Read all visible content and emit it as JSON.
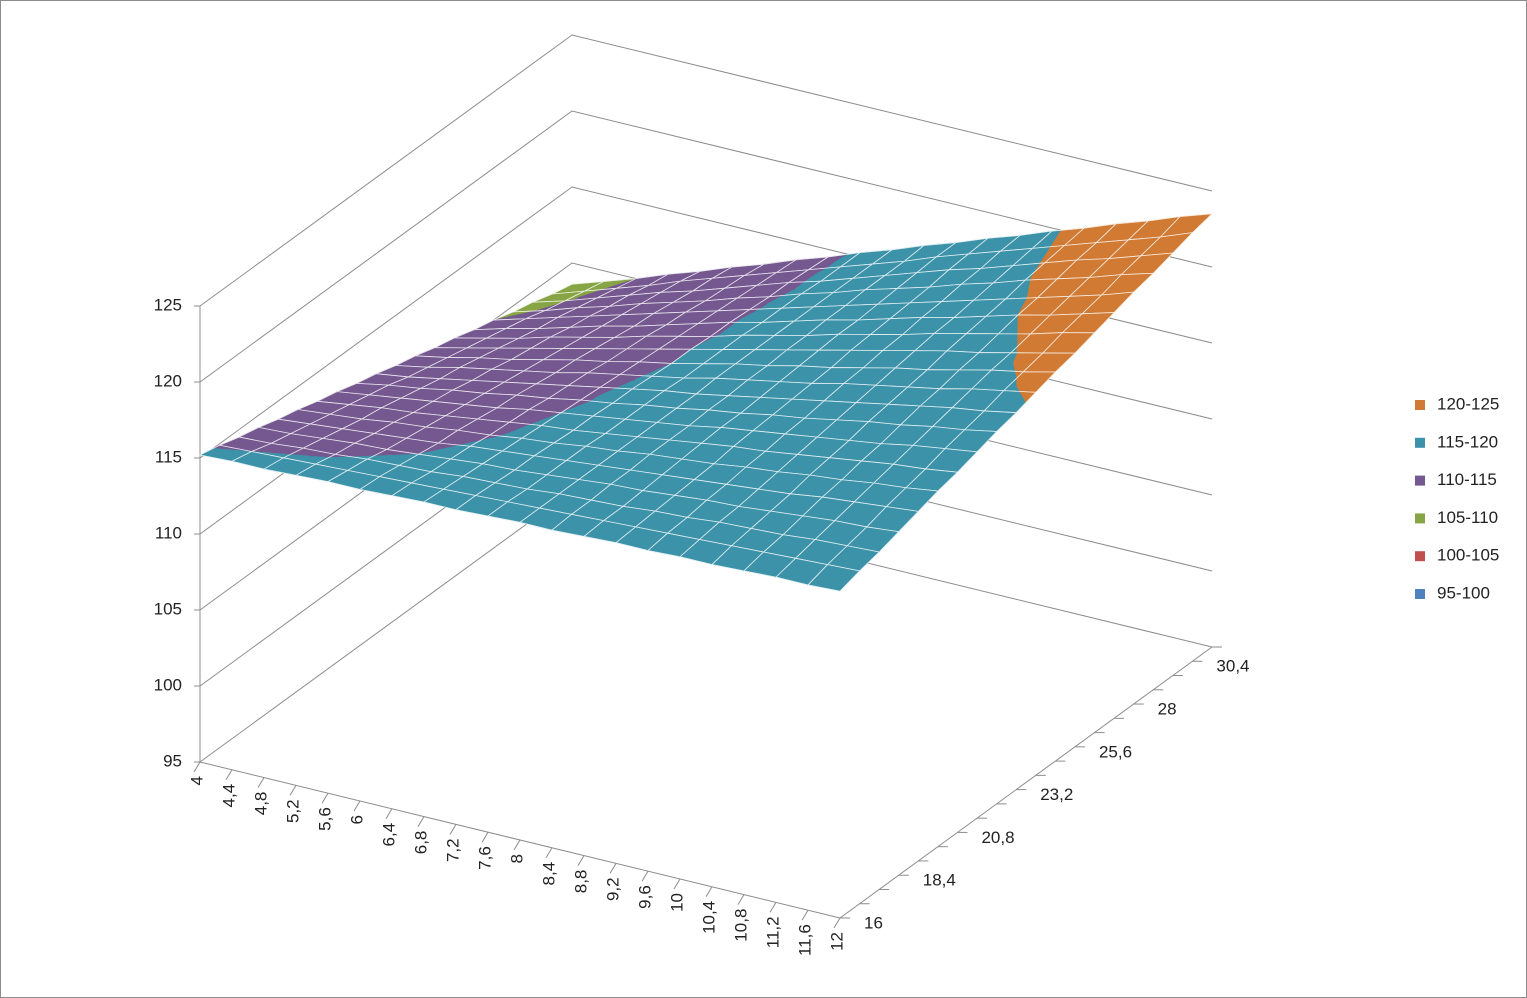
{
  "chart_data": {
    "type": "surface",
    "x_categories": [
      "4",
      "4,4",
      "4,8",
      "5,2",
      "5,6",
      "6",
      "6,4",
      "6,8",
      "7,2",
      "7,6",
      "8",
      "8,4",
      "8,8",
      "9,2",
      "9,6",
      "10",
      "10,4",
      "10,8",
      "11,2",
      "11,6",
      "12"
    ],
    "depth_categories": [
      "16",
      null,
      null,
      "18,4",
      null,
      null,
      "20,8",
      null,
      null,
      "23,2",
      null,
      null,
      "25,6",
      null,
      null,
      "28",
      null,
      null,
      "30,4",
      null
    ],
    "zlim": [
      95,
      125
    ],
    "zticks": [
      95,
      100,
      105,
      110,
      115,
      120,
      125
    ],
    "legend": "right",
    "bands": [
      {
        "name": "95-100",
        "color": "#4f81bd"
      },
      {
        "name": "100-105",
        "color": "#c0504d"
      },
      {
        "name": "105-110",
        "color": "#87a545"
      },
      {
        "name": "110-115",
        "color": "#74588f"
      },
      {
        "name": "115-120",
        "color": "#3c92a8"
      },
      {
        "name": "120-125",
        "color": "#d07a34"
      }
    ],
    "z": [
      [
        115.2,
        115.3,
        115.3,
        115.4,
        115.5,
        115.5,
        115.6,
        115.7,
        115.7,
        115.8,
        115.9,
        115.9,
        116.0,
        116.1,
        116.1,
        116.2,
        116.2,
        116.3,
        116.4,
        116.4,
        116.5
      ],
      [
        114.9,
        115.0,
        115.1,
        115.2,
        115.3,
        115.4,
        115.5,
        115.6,
        115.7,
        115.8,
        115.9,
        116.0,
        116.1,
        116.2,
        116.3,
        116.4,
        116.5,
        116.6,
        116.7,
        116.8,
        116.9
      ],
      [
        114.5,
        114.6,
        114.8,
        114.9,
        115.1,
        115.2,
        115.3,
        115.5,
        115.6,
        115.7,
        115.9,
        116.0,
        116.1,
        116.3,
        116.4,
        116.6,
        116.7,
        116.8,
        117.0,
        117.1,
        117.2
      ],
      [
        114.2,
        114.3,
        114.5,
        114.7,
        114.8,
        115.0,
        115.2,
        115.4,
        115.5,
        115.7,
        115.9,
        116.1,
        116.2,
        116.4,
        116.6,
        116.7,
        116.9,
        117.1,
        117.3,
        117.4,
        117.6
      ],
      [
        113.8,
        114.0,
        114.2,
        114.4,
        114.6,
        114.8,
        115.1,
        115.3,
        115.5,
        115.7,
        115.9,
        116.1,
        116.3,
        116.5,
        116.7,
        116.9,
        117.1,
        117.4,
        117.6,
        117.8,
        118.0
      ],
      [
        113.5,
        113.7,
        113.9,
        114.2,
        114.4,
        114.7,
        114.9,
        115.2,
        115.4,
        115.7,
        115.9,
        116.2,
        116.4,
        116.6,
        116.9,
        117.1,
        117.4,
        117.6,
        117.9,
        118.1,
        118.4
      ],
      [
        113.1,
        113.4,
        113.7,
        113.9,
        114.2,
        114.5,
        114.8,
        115.1,
        115.3,
        115.6,
        115.9,
        116.2,
        116.5,
        116.8,
        117.0,
        117.3,
        117.6,
        117.9,
        118.2,
        118.4,
        118.7
      ],
      [
        112.8,
        113.1,
        113.4,
        113.7,
        114.0,
        114.3,
        114.7,
        115.0,
        115.3,
        115.6,
        115.9,
        116.2,
        116.6,
        116.9,
        117.2,
        117.5,
        117.8,
        118.1,
        118.5,
        118.8,
        119.1
      ],
      [
        112.4,
        112.8,
        113.1,
        113.5,
        113.8,
        114.2,
        114.5,
        114.9,
        115.2,
        115.6,
        115.9,
        116.3,
        116.6,
        117.0,
        117.3,
        117.7,
        118.1,
        118.4,
        118.8,
        119.1,
        119.5
      ],
      [
        112.1,
        112.4,
        112.8,
        113.2,
        113.6,
        114.0,
        114.4,
        114.8,
        115.2,
        115.6,
        115.9,
        116.3,
        116.7,
        117.1,
        117.5,
        117.9,
        118.3,
        118.7,
        119.1,
        119.4,
        119.8
      ],
      [
        111.7,
        112.1,
        112.6,
        113.0,
        113.4,
        113.8,
        114.3,
        114.7,
        115.1,
        115.5,
        116.0,
        116.4,
        116.8,
        117.2,
        117.7,
        118.1,
        118.5,
        118.9,
        119.4,
        119.8,
        120.2
      ],
      [
        111.4,
        111.8,
        112.3,
        112.7,
        113.2,
        113.7,
        114.1,
        114.6,
        115.0,
        115.5,
        116.0,
        116.4,
        116.9,
        117.3,
        117.8,
        118.3,
        118.7,
        119.2,
        119.7,
        120.1,
        120.6
      ],
      [
        111.0,
        111.5,
        112.0,
        112.5,
        113.0,
        113.5,
        114.0,
        114.5,
        115.0,
        115.5,
        116.0,
        116.5,
        117.0,
        117.5,
        118.0,
        118.5,
        119.0,
        119.4,
        119.9,
        120.4,
        120.9
      ],
      [
        110.7,
        111.2,
        111.7,
        112.3,
        112.8,
        113.3,
        113.9,
        114.4,
        114.9,
        115.5,
        116.0,
        116.5,
        117.1,
        117.6,
        118.1,
        118.7,
        119.2,
        119.7,
        120.2,
        120.8,
        121.3
      ],
      [
        110.3,
        110.9,
        111.4,
        112.0,
        112.6,
        113.1,
        113.7,
        114.3,
        114.9,
        115.4,
        116.0,
        116.6,
        117.1,
        117.7,
        118.3,
        118.8,
        119.4,
        120.0,
        120.5,
        121.1,
        121.7
      ],
      [
        110.0,
        110.6,
        111.2,
        111.8,
        112.4,
        113.0,
        113.6,
        114.2,
        114.8,
        115.4,
        116.0,
        116.6,
        117.2,
        117.8,
        118.4,
        119.0,
        119.6,
        120.2,
        120.8,
        121.4,
        122.1
      ],
      [
        109.6,
        110.2,
        110.9,
        111.5,
        112.2,
        112.8,
        113.4,
        114.1,
        114.7,
        115.4,
        116.0,
        116.7,
        117.3,
        117.9,
        118.6,
        119.2,
        119.9,
        120.5,
        121.1,
        121.8,
        122.4
      ],
      [
        109.3,
        109.9,
        110.6,
        111.3,
        112.0,
        112.6,
        113.3,
        114.0,
        114.7,
        115.3,
        116.0,
        116.7,
        117.4,
        118.1,
        118.7,
        119.4,
        120.1,
        120.8,
        121.4,
        122.1,
        122.8
      ],
      [
        108.9,
        109.6,
        110.3,
        111.0,
        111.8,
        112.5,
        113.2,
        113.9,
        114.6,
        115.3,
        116.0,
        116.7,
        117.5,
        118.2,
        118.9,
        119.6,
        120.3,
        121.0,
        121.7,
        122.4,
        123.2
      ],
      [
        108.6,
        109.3,
        110.0,
        110.8,
        111.5,
        112.3,
        113.0,
        113.8,
        114.5,
        115.3,
        116.0,
        116.8,
        117.5,
        118.3,
        119.0,
        119.8,
        120.5,
        121.3,
        122.0,
        122.8,
        123.5
      ]
    ]
  }
}
